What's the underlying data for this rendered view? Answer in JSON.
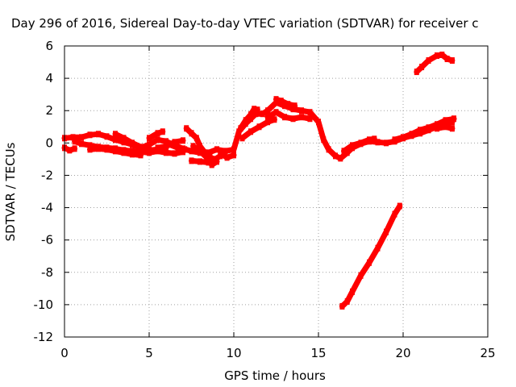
{
  "chart_data": {
    "type": "scatter",
    "title": "Day 296 of 2016, Sidereal Day-to-day VTEC variation (SDTVAR) for receiver c",
    "xlabel": "GPS time / hours",
    "ylabel": "SDTVAR / TECUs",
    "xlim": [
      0,
      25
    ],
    "ylim": [
      -12,
      6
    ],
    "xticks": [
      "0",
      "5",
      "10",
      "15",
      "20",
      "25"
    ],
    "yticks": [
      "6",
      "4",
      "2",
      "0",
      "-2",
      "-4",
      "-6",
      "-8",
      "-10",
      "-12"
    ],
    "grid": true,
    "color": "#ff0000",
    "series": [
      {
        "name": "",
        "points": [
          [
            0,
            0.3
          ],
          [
            0.5,
            0.35
          ],
          [
            1,
            0.35
          ],
          [
            1.5,
            0.5
          ],
          [
            2,
            0.55
          ],
          [
            2.5,
            0.4
          ],
          [
            3,
            0.2
          ],
          [
            3.5,
            0.05
          ],
          [
            4,
            -0.1
          ],
          [
            4.5,
            -0.3
          ],
          [
            5,
            -0.1
          ],
          [
            5.5,
            0.2
          ],
          [
            6,
            0.1
          ],
          [
            6.5,
            -0.15
          ],
          [
            7,
            -0.35
          ],
          [
            7.5,
            -0.5
          ],
          [
            8,
            -0.6
          ],
          [
            8.5,
            -0.6
          ],
          [
            9,
            -0.4
          ],
          [
            9.5,
            -0.5
          ],
          [
            10,
            -0.4
          ],
          [
            10.3,
            0.7
          ],
          [
            10.7,
            1.2
          ],
          [
            11,
            1.5
          ],
          [
            11.3,
            1.8
          ],
          [
            11.7,
            1.8
          ],
          [
            12,
            2.0
          ],
          [
            12.5,
            2.5
          ],
          [
            13,
            2.3
          ],
          [
            13.5,
            2.1
          ],
          [
            14,
            2.0
          ],
          [
            14.5,
            1.9
          ],
          [
            15,
            1.3
          ],
          [
            15.3,
            0.2
          ],
          [
            15.6,
            -0.4
          ],
          [
            16,
            -0.8
          ],
          [
            16.3,
            -0.95
          ],
          [
            16.7,
            -0.6
          ],
          [
            17,
            -0.3
          ],
          [
            17.5,
            -0.05
          ],
          [
            18,
            0.1
          ],
          [
            18.5,
            0.05
          ],
          [
            19,
            0
          ],
          [
            19.5,
            0.1
          ],
          [
            20,
            0.3
          ],
          [
            20.5,
            0.45
          ],
          [
            21,
            0.6
          ],
          [
            21.5,
            0.8
          ],
          [
            22,
            1.0
          ],
          [
            22.5,
            1.2
          ],
          [
            22.9,
            1.3
          ]
        ]
      },
      {
        "name": "",
        "points": [
          [
            0,
            -0.3
          ],
          [
            0.3,
            -0.45
          ],
          [
            0.6,
            -0.35
          ]
        ]
      },
      {
        "name": "",
        "points": [
          [
            1.5,
            -0.4
          ],
          [
            2,
            -0.35
          ],
          [
            2.5,
            -0.4
          ],
          [
            3,
            -0.5
          ],
          [
            3.5,
            -0.6
          ],
          [
            4,
            -0.7
          ],
          [
            4.5,
            -0.75
          ]
        ]
      },
      {
        "name": "",
        "points": [
          [
            0.6,
            0.1
          ],
          [
            1,
            -0.05
          ],
          [
            1.5,
            -0.15
          ],
          [
            2,
            -0.25
          ],
          [
            2.5,
            -0.3
          ],
          [
            3,
            -0.35
          ],
          [
            3.5,
            -0.45
          ],
          [
            4,
            -0.5
          ],
          [
            4.5,
            -0.55
          ],
          [
            5,
            -0.6
          ],
          [
            5.5,
            -0.5
          ],
          [
            6,
            -0.6
          ],
          [
            6.5,
            -0.65
          ],
          [
            7,
            -0.55
          ]
        ]
      },
      {
        "name": "",
        "points": [
          [
            3,
            0.55
          ],
          [
            3.5,
            0.3
          ],
          [
            4,
            0.0
          ],
          [
            4.5,
            -0.25
          ],
          [
            5,
            -0.45
          ],
          [
            5.5,
            -0.4
          ],
          [
            6,
            -0.3
          ]
        ]
      },
      {
        "name": "",
        "points": [
          [
            5,
            0.3
          ],
          [
            5.5,
            0.6
          ],
          [
            5.8,
            0.7
          ]
        ]
      },
      {
        "name": "",
        "points": [
          [
            5.5,
            -0.3
          ],
          [
            6,
            -0.2
          ],
          [
            6.5,
            0.05
          ],
          [
            7,
            0.15
          ]
        ]
      },
      {
        "name": "",
        "points": [
          [
            6.2,
            -0.1
          ],
          [
            6.7,
            -0.3
          ],
          [
            7.1,
            -0.4
          ]
        ]
      },
      {
        "name": "",
        "points": [
          [
            7.2,
            0.9
          ],
          [
            7.5,
            0.6
          ],
          [
            7.8,
            0.3
          ],
          [
            8,
            -0.2
          ],
          [
            8.3,
            -0.6
          ],
          [
            8.6,
            -0.9
          ],
          [
            8.9,
            -1.0
          ],
          [
            9.2,
            -0.8
          ]
        ]
      },
      {
        "name": "",
        "points": [
          [
            7.6,
            -0.2
          ],
          [
            8,
            -0.5
          ],
          [
            8.4,
            -0.9
          ],
          [
            8.7,
            -1.35
          ],
          [
            9.0,
            -1.15
          ]
        ]
      },
      {
        "name": "",
        "points": [
          [
            7.5,
            -1.1
          ],
          [
            8,
            -1.15
          ],
          [
            8.5,
            -1.2
          ]
        ]
      },
      {
        "name": "",
        "points": [
          [
            9.3,
            -0.7
          ],
          [
            9.6,
            -0.9
          ],
          [
            10,
            -0.75
          ]
        ]
      },
      {
        "name": "",
        "points": [
          [
            10.4,
            0.9
          ],
          [
            10.7,
            1.4
          ],
          [
            11,
            1.75
          ],
          [
            11.2,
            2.1
          ],
          [
            11.4,
            2.05
          ]
        ]
      },
      {
        "name": "",
        "points": [
          [
            10.5,
            0.3
          ],
          [
            11,
            0.7
          ],
          [
            11.5,
            1.0
          ],
          [
            12,
            1.3
          ],
          [
            12.4,
            1.45
          ]
        ]
      },
      {
        "name": "",
        "points": [
          [
            12,
            1.6
          ],
          [
            12.5,
            1.9
          ],
          [
            13,
            1.6
          ],
          [
            13.5,
            1.5
          ],
          [
            14,
            1.6
          ],
          [
            14.5,
            1.5
          ]
        ]
      },
      {
        "name": "",
        "points": [
          [
            12.5,
            2.7
          ],
          [
            12.8,
            2.6
          ],
          [
            13.2,
            2.4
          ],
          [
            13.6,
            2.3
          ]
        ]
      },
      {
        "name": "",
        "points": [
          [
            16.5,
            -0.5
          ],
          [
            17,
            -0.15
          ],
          [
            17.5,
            0
          ],
          [
            18,
            0.2
          ],
          [
            18.3,
            0.25
          ]
        ]
      },
      {
        "name": "",
        "points": [
          [
            19.5,
            0.2
          ],
          [
            20,
            0.35
          ],
          [
            20.5,
            0.55
          ],
          [
            21,
            0.8
          ],
          [
            21.5,
            0.95
          ],
          [
            22,
            1.15
          ],
          [
            22.5,
            1.4
          ],
          [
            23,
            1.5
          ]
        ]
      },
      {
        "name": "",
        "points": [
          [
            22.0,
            0.9
          ],
          [
            22.5,
            1.0
          ],
          [
            22.9,
            0.9
          ]
        ]
      },
      {
        "name": "",
        "points": [
          [
            20.8,
            4.4
          ],
          [
            21.1,
            4.7
          ],
          [
            21.5,
            5.1
          ],
          [
            22,
            5.4
          ],
          [
            22.3,
            5.45
          ],
          [
            22.6,
            5.2
          ],
          [
            22.9,
            5.1
          ]
        ]
      },
      {
        "name": "",
        "points": [
          [
            16.4,
            -10.1
          ],
          [
            16.7,
            -9.8
          ],
          [
            17,
            -9.2
          ],
          [
            17.5,
            -8.2
          ],
          [
            18,
            -7.4
          ],
          [
            18.5,
            -6.5
          ],
          [
            19,
            -5.5
          ],
          [
            19.5,
            -4.4
          ],
          [
            19.8,
            -3.9
          ]
        ]
      }
    ]
  }
}
